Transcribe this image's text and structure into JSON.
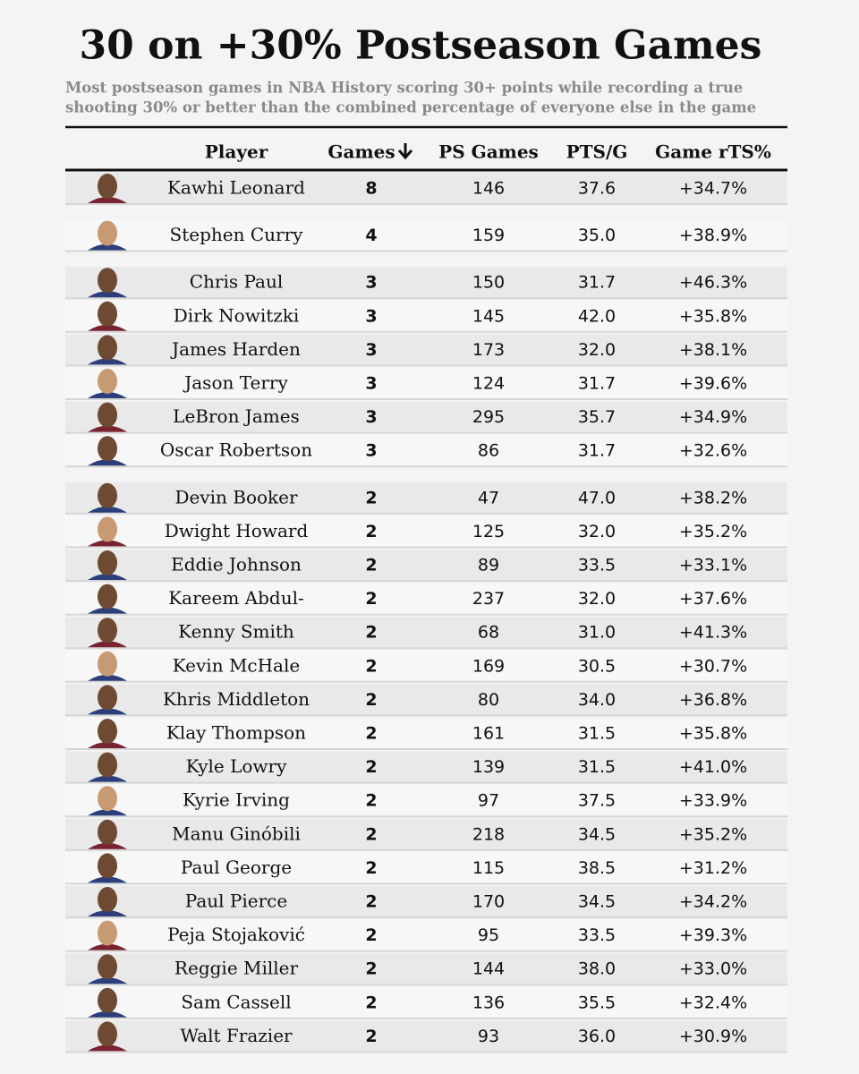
{
  "header": {
    "title": "30 on +30% Postseason Games",
    "subtitle": [
      "Most postseason games in NBA History scoring 30+ points while recording a true",
      "shooting 30% or better than the combined percentage of everyone else in the game"
    ]
  },
  "table": {
    "columns": [
      "Player",
      "Games",
      "PS Games",
      "PTS/G",
      "Game rTS%"
    ],
    "rows": [
      [
        "Kawhi Leonard",
        "8",
        "146",
        "37.6",
        "+34.7%"
      ],
      [
        "Stephen Curry",
        "4",
        "159",
        "35.0",
        "+38.9%"
      ],
      [
        "Chris Paul",
        "3",
        "150",
        "31.7",
        "+46.3%"
      ],
      [
        "Dirk Nowitzki",
        "3",
        "145",
        "42.0",
        "+35.8%"
      ],
      [
        "James Harden",
        "3",
        "173",
        "32.0",
        "+38.1%"
      ],
      [
        "Jason Terry",
        "3",
        "124",
        "31.7",
        "+39.6%"
      ],
      [
        "LeBron James",
        "3",
        "295",
        "35.7",
        "+34.9%"
      ],
      [
        "Oscar Robertson",
        "3",
        "86",
        "31.7",
        "+32.6%"
      ],
      [
        "Devin Booker",
        "2",
        "47",
        "47.0",
        "+38.2%"
      ],
      [
        "Dwight Howard",
        "2",
        "125",
        "32.0",
        "+35.2%"
      ],
      [
        "Eddie Johnson",
        "2",
        "89",
        "33.5",
        "+33.1%"
      ],
      [
        "Kareem Abdul-",
        "2",
        "237",
        "32.0",
        "+37.6%"
      ],
      [
        "Kenny Smith",
        "2",
        "68",
        "31.0",
        "+41.3%"
      ],
      [
        "Kevin McHale",
        "2",
        "169",
        "30.5",
        "+30.7%"
      ],
      [
        "Khris Middleton",
        "2",
        "80",
        "34.0",
        "+36.8%"
      ],
      [
        "Klay Thompson",
        "2",
        "161",
        "31.5",
        "+35.8%"
      ],
      [
        "Kyle Lowry",
        "2",
        "139",
        "31.5",
        "+41.0%"
      ],
      [
        "Kyrie Irving",
        "2",
        "97",
        "37.5",
        "+33.9%"
      ],
      [
        "Manu Ginóbili",
        "2",
        "218",
        "34.5",
        "+35.2%"
      ],
      [
        "Paul George",
        "2",
        "115",
        "38.5",
        "+31.2%"
      ],
      [
        "Paul Pierce",
        "2",
        "170",
        "34.5",
        "+34.2%"
      ],
      [
        "Peja Stojaković",
        "2",
        "95",
        "33.5",
        "+39.3%"
      ],
      [
        "Reggie Miller",
        "2",
        "144",
        "38.0",
        "+33.0%"
      ],
      [
        "Sam Cassell",
        "2",
        "136",
        "35.5",
        "+32.4%"
      ],
      [
        "Walt Frazier",
        "2",
        "93",
        "36.0",
        "+30.9%"
      ]
    ]
  }
}
